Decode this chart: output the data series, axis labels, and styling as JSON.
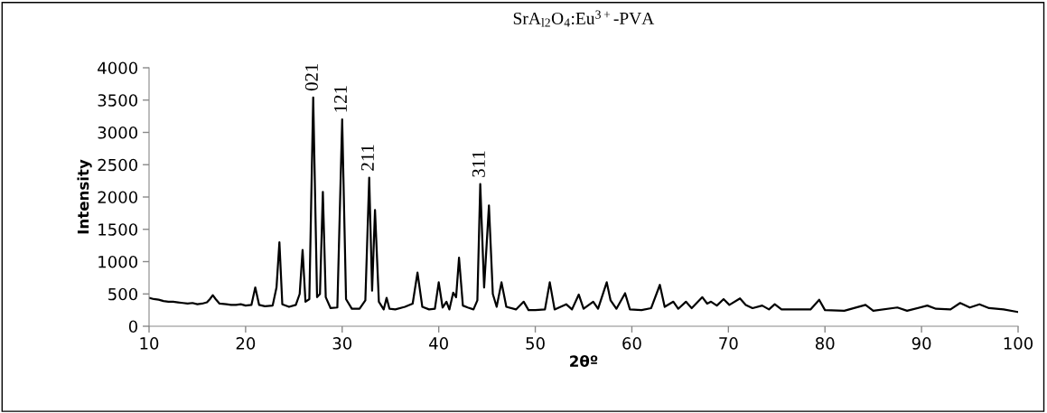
{
  "chart_data": {
    "type": "line",
    "title": "SrA$_{l2}$O$_{4}$:Eu$^{3+}$-PVA",
    "xlabel": "2θº",
    "ylabel": "Intensity",
    "x": [
      10,
      10.5,
      11,
      11.5,
      12,
      12.5,
      13,
      13.5,
      14,
      14.5,
      15,
      15.5,
      16,
      16.3,
      16.6,
      16.9,
      17.3,
      18,
      18.5,
      19,
      19.5,
      20,
      20.6,
      21,
      21.4,
      22,
      22.8,
      23.2,
      23.5,
      23.8,
      24.5,
      25.2,
      25.6,
      25.9,
      26.2,
      26.6,
      27.0,
      27.4,
      27.7,
      28.0,
      28.3,
      28.8,
      29.5,
      30.0,
      30.4,
      31,
      31.8,
      32.4,
      32.8,
      33.1,
      33.4,
      33.8,
      34.3,
      34.6,
      34.9,
      35.5,
      36.5,
      37.3,
      37.8,
      38.3,
      39,
      39.6,
      40.0,
      40.4,
      40.8,
      41.1,
      41.5,
      41.8,
      42.1,
      42.5,
      43,
      43.6,
      44.0,
      44.3,
      44.7,
      45.2,
      45.6,
      46.0,
      46.5,
      47,
      48,
      48.8,
      49.3,
      50,
      51,
      51.5,
      52,
      53.2,
      53.8,
      54.5,
      55,
      56.0,
      56.5,
      57.4,
      57.8,
      58.4,
      59.3,
      59.8,
      61,
      62,
      62.9,
      63.4,
      64.3,
      64.8,
      65.6,
      66.2,
      67.3,
      67.8,
      68.2,
      68.8,
      69.5,
      70.1,
      71.2,
      71.8,
      72.5,
      73.5,
      74.2,
      74.8,
      75.5,
      77,
      78.5,
      79.4,
      80,
      82,
      84.2,
      85,
      87.5,
      88.5,
      90.6,
      91.5,
      93,
      94,
      95,
      96,
      97,
      98.5,
      100
    ],
    "values": [
      440,
      420,
      410,
      390,
      380,
      380,
      370,
      360,
      350,
      360,
      340,
      350,
      370,
      420,
      480,
      420,
      350,
      340,
      330,
      330,
      340,
      320,
      330,
      600,
      330,
      310,
      320,
      600,
      1300,
      340,
      300,
      330,
      500,
      1180,
      380,
      420,
      3540,
      450,
      500,
      2080,
      450,
      280,
      290,
      3200,
      420,
      270,
      270,
      400,
      2300,
      550,
      1800,
      380,
      260,
      440,
      270,
      260,
      300,
      350,
      830,
      300,
      260,
      270,
      680,
      290,
      380,
      260,
      520,
      450,
      1060,
      320,
      290,
      260,
      400,
      2200,
      600,
      1870,
      500,
      300,
      680,
      300,
      260,
      380,
      250,
      250,
      260,
      680,
      260,
      340,
      260,
      490,
      270,
      380,
      270,
      680,
      400,
      270,
      510,
      260,
      250,
      280,
      640,
      300,
      380,
      270,
      380,
      280,
      450,
      350,
      380,
      320,
      420,
      330,
      430,
      330,
      280,
      320,
      260,
      340,
      260,
      260,
      260,
      410,
      250,
      240,
      330,
      240,
      290,
      240,
      320,
      270,
      260,
      360,
      290,
      340,
      280,
      260,
      220
    ],
    "color": "#000000",
    "xlim": [
      10,
      100
    ],
    "xticks": [
      10,
      20,
      30,
      40,
      50,
      60,
      70,
      80,
      90,
      100
    ],
    "ylim": [
      0,
      4000
    ],
    "yticks": [
      0,
      500,
      1000,
      1500,
      2000,
      2500,
      3000,
      3500,
      4000
    ],
    "grid": false,
    "legend": false,
    "marker": "none",
    "line_style": "solid",
    "annotations": [
      {
        "text": "021",
        "x": 27.0,
        "y": 3540
      },
      {
        "text": "121",
        "x": 30.0,
        "y": 3200
      },
      {
        "text": "211",
        "x": 32.8,
        "y": 2300
      },
      {
        "text": "311",
        "x": 44.3,
        "y": 2200
      }
    ]
  }
}
